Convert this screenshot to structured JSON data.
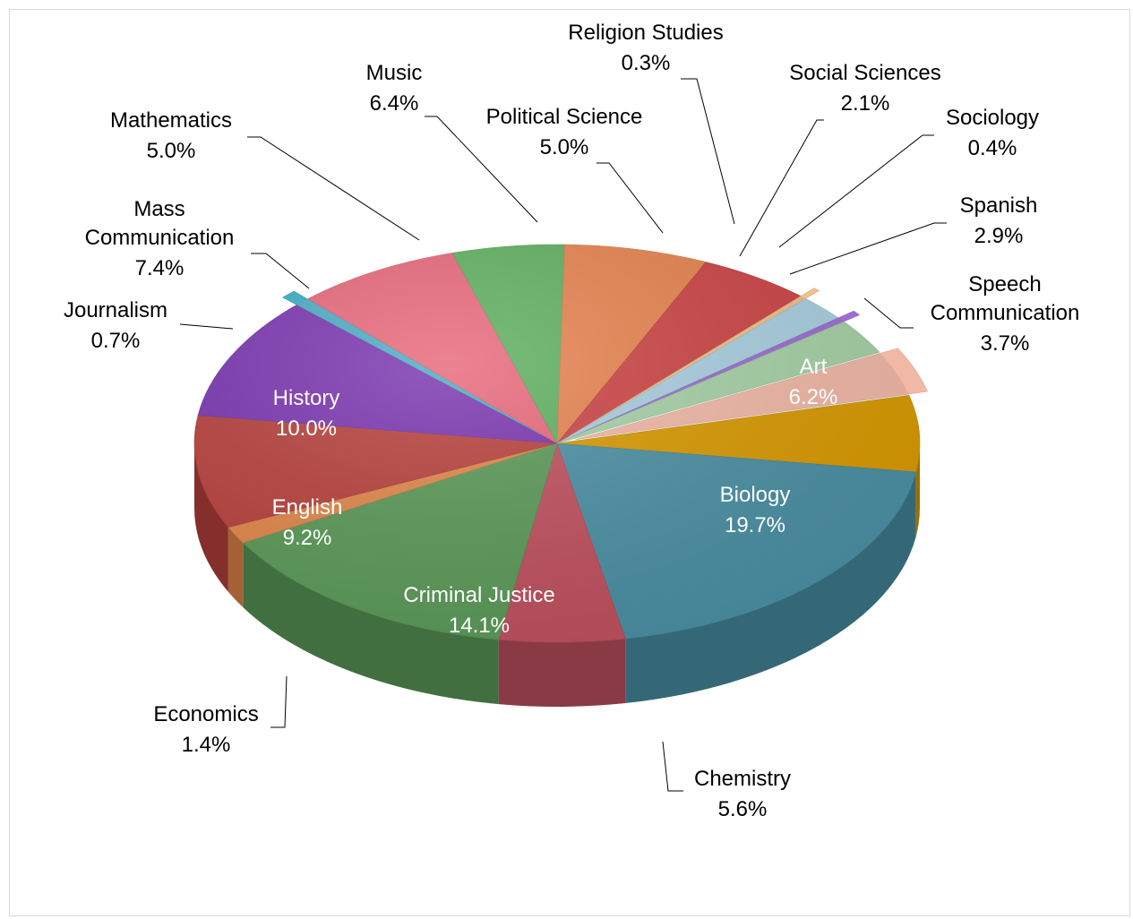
{
  "chart_data": {
    "type": "pie",
    "slices": [
      {
        "category": "Art",
        "percent_label": "6.2%",
        "value": 6.2,
        "color": "#d99a00"
      },
      {
        "category": "Biology",
        "percent_label": "19.7%",
        "value": 19.7,
        "color": "#4a90a4"
      },
      {
        "category": "Chemistry",
        "percent_label": "5.6%",
        "value": 5.6,
        "color": "#c0505e"
      },
      {
        "category": "Criminal Justice",
        "percent_label": "14.1%",
        "value": 14.1,
        "color": "#5b9a58"
      },
      {
        "category": "Economics",
        "percent_label": "1.4%",
        "value": 1.4,
        "color": "#e2874a"
      },
      {
        "category": "English",
        "percent_label": "9.2%",
        "value": 9.2,
        "color": "#b8413c"
      },
      {
        "category": "History",
        "percent_label": "10.0%",
        "value": 10.0,
        "color": "#7a35b0"
      },
      {
        "category": "Journalism",
        "percent_label": "0.7%",
        "value": 0.7,
        "color": "#4bacc6"
      },
      {
        "category": "Mass Communication",
        "percent_label": "7.4%",
        "value": 7.4,
        "color": "#e8687a"
      },
      {
        "category": "Mathematics",
        "percent_label": "5.0%",
        "value": 5.0,
        "color": "#5fb060"
      },
      {
        "category": "Music",
        "percent_label": "6.4%",
        "value": 6.4,
        "color": "#e7834f"
      },
      {
        "category": "Political Science",
        "percent_label": "5.0%",
        "value": 5.0,
        "color": "#cc4444"
      },
      {
        "category": "Religion Studies",
        "percent_label": "0.3%",
        "value": 0.3,
        "color": "#f0c08a"
      },
      {
        "category": "Social Sciences",
        "percent_label": "2.1%",
        "value": 2.1,
        "color": "#a9cfe0"
      },
      {
        "category": "Sociology",
        "percent_label": "0.4%",
        "value": 0.4,
        "color": "#9b6ed4"
      },
      {
        "category": "Spanish",
        "percent_label": "2.9%",
        "value": 2.9,
        "color": "#a6d1a6"
      },
      {
        "category": "Speech Communication",
        "percent_label": "3.7%",
        "value": 3.7,
        "color": "#f2b8a6"
      }
    ]
  }
}
